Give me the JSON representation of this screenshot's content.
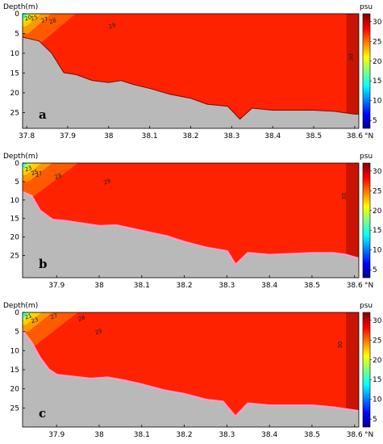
{
  "chart_data": [
    {
      "type": "heatmap",
      "panel_label": "a",
      "ylabel": "Depth(m)",
      "xlabel_unit": "°N",
      "colorbar_label": "psu",
      "x_ticks": [
        "37.8",
        "37.9",
        "38",
        "38.1",
        "38.2",
        "38.3",
        "38.4",
        "38.5",
        "38.6"
      ],
      "y_ticks": [
        "0",
        "5",
        "10",
        "15",
        "20",
        "25"
      ],
      "colorbar_ticks": [
        "5",
        "10",
        "15",
        "20",
        "25",
        "30"
      ],
      "xlim": [
        37.79,
        38.61
      ],
      "ylim": [
        0,
        29
      ],
      "colorbar_range": [
        3,
        32
      ],
      "contour_labels": [
        {
          "text": "20",
          "lat": 37.805,
          "depth": 1.5
        },
        {
          "text": "25",
          "lat": 37.82,
          "depth": 1.5
        },
        {
          "text": "27",
          "lat": 37.845,
          "depth": 2.0
        },
        {
          "text": "28",
          "lat": 37.865,
          "depth": 2.3
        },
        {
          "text": "29",
          "lat": 38.01,
          "depth": 3.5
        },
        {
          "text": "30",
          "lat": 38.595,
          "depth": 11.0
        }
      ],
      "bottom_profile": [
        [
          37.79,
          6
        ],
        [
          37.83,
          7
        ],
        [
          37.86,
          10
        ],
        [
          37.89,
          15
        ],
        [
          37.92,
          15.5
        ],
        [
          37.96,
          17
        ],
        [
          38.0,
          17.5
        ],
        [
          38.03,
          17
        ],
        [
          38.06,
          18
        ],
        [
          38.1,
          19
        ],
        [
          38.15,
          20.5
        ],
        [
          38.2,
          21.5
        ],
        [
          38.24,
          23
        ],
        [
          38.29,
          23.5
        ],
        [
          38.32,
          26.8
        ],
        [
          38.35,
          24
        ],
        [
          38.4,
          24.5
        ],
        [
          38.5,
          24.5
        ],
        [
          38.55,
          24.8
        ],
        [
          38.6,
          25.5
        ],
        [
          38.61,
          25.5
        ]
      ]
    },
    {
      "type": "heatmap",
      "panel_label": "b",
      "ylabel": "Depth(m)",
      "xlabel_unit": "°N",
      "colorbar_label": "psu",
      "x_ticks": [
        "37.9",
        "38",
        "38.1",
        "38.2",
        "38.3",
        "38.4",
        "38.5",
        "38.6"
      ],
      "y_ticks": [
        "0",
        "5",
        "10",
        "15",
        "20",
        "25"
      ],
      "colorbar_ticks": [
        "5",
        "10",
        "15",
        "20",
        "25",
        "30"
      ],
      "xlim": [
        37.82,
        38.61
      ],
      "ylim": [
        0,
        31
      ],
      "colorbar_range": [
        3,
        32
      ],
      "contour_labels": [
        {
          "text": "23",
          "lat": 37.835,
          "depth": 2.0
        },
        {
          "text": "25",
          "lat": 37.85,
          "depth": 3.0
        },
        {
          "text": "27",
          "lat": 37.86,
          "depth": 3.5
        },
        {
          "text": "28",
          "lat": 37.905,
          "depth": 4.0
        },
        {
          "text": "29",
          "lat": 38.02,
          "depth": 5.5
        },
        {
          "text": "30",
          "lat": 38.58,
          "depth": 9.0
        }
      ],
      "bottom_profile": [
        [
          37.82,
          8
        ],
        [
          37.84,
          9
        ],
        [
          37.86,
          13
        ],
        [
          37.89,
          15.5
        ],
        [
          37.92,
          15.8
        ],
        [
          37.96,
          16.5
        ],
        [
          38.0,
          17.2
        ],
        [
          38.04,
          17
        ],
        [
          38.08,
          18
        ],
        [
          38.12,
          19
        ],
        [
          38.16,
          20
        ],
        [
          38.2,
          21.5
        ],
        [
          38.25,
          23
        ],
        [
          38.3,
          24
        ],
        [
          38.32,
          27.8
        ],
        [
          38.35,
          24.5
        ],
        [
          38.4,
          25
        ],
        [
          38.5,
          24.5
        ],
        [
          38.55,
          24.5
        ],
        [
          38.58,
          25
        ],
        [
          38.61,
          26
        ]
      ]
    },
    {
      "type": "heatmap",
      "panel_label": "c",
      "ylabel": "Depth(m)",
      "xlabel_unit": "°N",
      "colorbar_label": "psu",
      "x_ticks": [
        "37.9",
        "38",
        "38.1",
        "38.2",
        "38.3",
        "38.4",
        "38.5",
        "38.6"
      ],
      "y_ticks": [
        "0",
        "5",
        "10",
        "15",
        "20",
        "25"
      ],
      "colorbar_ticks": [
        "5",
        "10",
        "15",
        "20",
        "25",
        "30"
      ],
      "xlim": [
        37.82,
        38.61
      ],
      "ylim": [
        0,
        30
      ],
      "colorbar_range": [
        3,
        32
      ],
      "contour_labels": [
        {
          "text": "21",
          "lat": 37.835,
          "depth": 1.5
        },
        {
          "text": "23",
          "lat": 37.85,
          "depth": 2.5
        },
        {
          "text": "27",
          "lat": 37.895,
          "depth": 1.5
        },
        {
          "text": "28",
          "lat": 37.96,
          "depth": 2.0
        },
        {
          "text": "29",
          "lat": 38.0,
          "depth": 5.5
        },
        {
          "text": "30",
          "lat": 38.57,
          "depth": 8.5
        }
      ],
      "bottom_profile": [
        [
          37.82,
          5
        ],
        [
          37.84,
          8
        ],
        [
          37.86,
          12
        ],
        [
          37.88,
          15
        ],
        [
          37.9,
          16.5
        ],
        [
          37.94,
          17
        ],
        [
          37.98,
          17.5
        ],
        [
          38.02,
          17.2
        ],
        [
          38.06,
          18
        ],
        [
          38.1,
          19
        ],
        [
          38.15,
          20.5
        ],
        [
          38.2,
          21.5
        ],
        [
          38.25,
          23
        ],
        [
          38.29,
          23.5
        ],
        [
          38.32,
          27.5
        ],
        [
          38.35,
          24
        ],
        [
          38.4,
          24.5
        ],
        [
          38.5,
          24.5
        ],
        [
          38.55,
          25
        ],
        [
          38.61,
          26
        ]
      ]
    }
  ]
}
